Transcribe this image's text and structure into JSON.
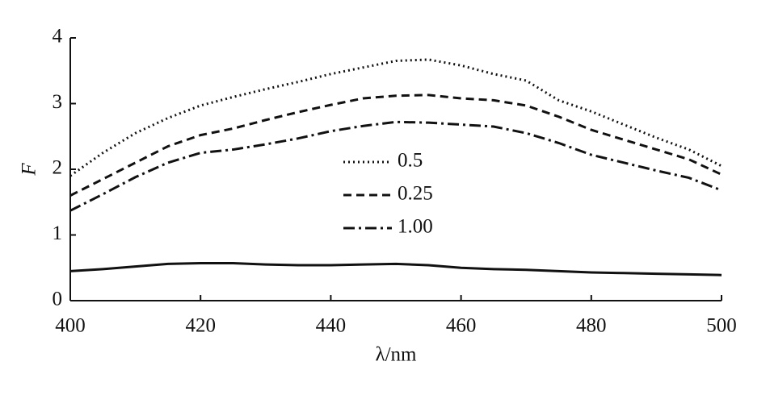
{
  "chart_data": {
    "type": "line",
    "x_label": "λ/nm",
    "y_label": "F",
    "x": [
      400,
      405,
      410,
      415,
      420,
      425,
      430,
      435,
      440,
      445,
      450,
      455,
      460,
      465,
      470,
      475,
      480,
      485,
      490,
      495,
      500
    ],
    "series": [
      {
        "name": "0.5",
        "color": "#111111",
        "style": "dotted",
        "values": [
          1.9,
          2.25,
          2.55,
          2.78,
          2.97,
          3.1,
          3.22,
          3.33,
          3.45,
          3.55,
          3.65,
          3.67,
          3.58,
          3.45,
          3.35,
          3.05,
          2.88,
          2.68,
          2.48,
          2.3,
          2.05
        ]
      },
      {
        "name": "0.25",
        "color": "#111111",
        "style": "dashed",
        "values": [
          1.6,
          1.85,
          2.1,
          2.35,
          2.52,
          2.62,
          2.75,
          2.87,
          2.98,
          3.08,
          3.12,
          3.13,
          3.08,
          3.05,
          2.97,
          2.8,
          2.6,
          2.45,
          2.3,
          2.15,
          1.92
        ]
      },
      {
        "name": "1.00",
        "color": "#111111",
        "style": "dashdot",
        "values": [
          1.37,
          1.62,
          1.88,
          2.1,
          2.25,
          2.3,
          2.38,
          2.47,
          2.58,
          2.66,
          2.72,
          2.71,
          2.68,
          2.65,
          2.55,
          2.4,
          2.22,
          2.1,
          1.98,
          1.87,
          1.68
        ]
      },
      {
        "color": "#111111",
        "style": "solid",
        "values": [
          0.45,
          0.48,
          0.52,
          0.56,
          0.57,
          0.57,
          0.55,
          0.54,
          0.54,
          0.55,
          0.56,
          0.54,
          0.5,
          0.48,
          0.47,
          0.45,
          0.43,
          0.42,
          0.41,
          0.4,
          0.39
        ]
      }
    ],
    "xlim": [
      400,
      500
    ],
    "xticks": [
      400,
      420,
      440,
      460,
      480,
      500
    ],
    "ylim": [
      0,
      4
    ],
    "yticks": [
      0,
      1,
      2,
      3,
      4
    ],
    "grid": false,
    "legend": "center"
  }
}
